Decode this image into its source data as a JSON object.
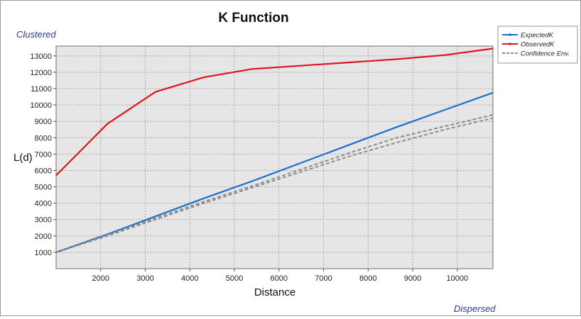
{
  "chart_data": {
    "type": "line",
    "title": "K Function",
    "xlabel": "Distance",
    "ylabel": "L(d)",
    "top_annotation": "Clustered",
    "bottom_annotation": "Dispersed",
    "xlim": [
      1000,
      10800
    ],
    "ylim": [
      0,
      13600
    ],
    "x_ticks": [
      2000,
      3000,
      4000,
      5000,
      6000,
      7000,
      8000,
      9000,
      10000
    ],
    "y_ticks": [
      1000,
      2000,
      3000,
      4000,
      5000,
      6000,
      7000,
      8000,
      9000,
      10000,
      11000,
      12000,
      13000
    ],
    "grid": true,
    "legend_position": "top-right",
    "series": [
      {
        "name": "ExpectedK",
        "color": "#1f6ec9",
        "style": "solid",
        "x": [
          1000,
          2150,
          3230,
          4320,
          5400,
          6480,
          7560,
          8640,
          9720,
          10800
        ],
        "y": [
          1000,
          2100,
          3200,
          4300,
          5350,
          6450,
          7550,
          8650,
          9700,
          10750
        ]
      },
      {
        "name": "ObservedK",
        "color": "#e0141e",
        "style": "solid",
        "x": [
          1000,
          2150,
          3230,
          4320,
          5400,
          6480,
          7560,
          8640,
          9720,
          10800
        ],
        "y": [
          5700,
          8850,
          10800,
          11700,
          12200,
          12400,
          12600,
          12800,
          13050,
          13450
        ]
      },
      {
        "name": "Confidence Env.",
        "color": "#8c8c8c",
        "style": "dashed",
        "x": [
          1000,
          2150,
          3230,
          4320,
          5400,
          6480,
          7560,
          8640,
          9720,
          10800
        ],
        "y": [
          1000,
          2050,
          3100,
          4100,
          5050,
          6050,
          7050,
          8000,
          8700,
          9400
        ]
      },
      {
        "name": "Confidence Env.",
        "color": "#8c8c8c",
        "style": "dashed",
        "x": [
          1000,
          2150,
          3230,
          4320,
          5400,
          6480,
          7560,
          8640,
          9720,
          10800
        ],
        "y": [
          1000,
          2000,
          3000,
          4000,
          4950,
          5900,
          6850,
          7700,
          8500,
          9200
        ]
      }
    ]
  },
  "legend": {
    "items": [
      {
        "label": "ExpectedK",
        "color": "#1f6ec9",
        "style": "solid"
      },
      {
        "label": "ObservedK",
        "color": "#e0141e",
        "style": "solid"
      },
      {
        "label": "Confidence Env.",
        "color": "#8c8c8c",
        "style": "dashed"
      }
    ]
  },
  "colors": {
    "plot_background": "#e6e6e6",
    "grid": "#a8a8a8",
    "annotation": "#2d3a8c"
  }
}
